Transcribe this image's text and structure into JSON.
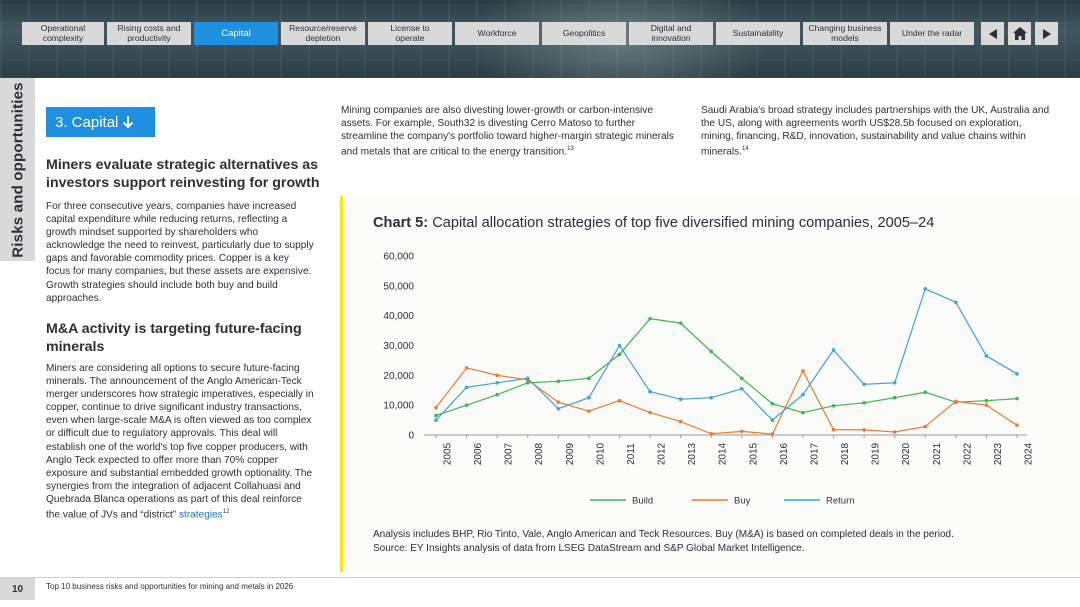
{
  "nav": {
    "tabs": [
      {
        "label": "Operational\ncomplexity",
        "active": false
      },
      {
        "label": "Rising costs and\nproductivity",
        "active": false
      },
      {
        "label": "Capital",
        "active": true
      },
      {
        "label": "Resource/reserve\ndepletion",
        "active": false
      },
      {
        "label": "License to\noperate",
        "active": false
      },
      {
        "label": "Workforce",
        "active": false
      },
      {
        "label": "Geopolitics",
        "active": false
      },
      {
        "label": "Digital and\ninnovation",
        "active": false
      },
      {
        "label": "Sustainability",
        "active": false
      },
      {
        "label": "Changing business\nmodels",
        "active": false
      },
      {
        "label": "Under the radar",
        "active": false
      }
    ],
    "icons": [
      "prev-arrow-icon",
      "home-icon",
      "next-arrow-icon"
    ]
  },
  "side_tab": "Risks and opportunities",
  "section": {
    "badge": "3. Capital",
    "badge_icon": "arrow-down-icon",
    "heading1": "Miners evaluate strategic alternatives as investors support reinvesting for growth",
    "para1": "For three consecutive years, companies have increased capital expenditure while reducing returns, reflecting a growth mindset supported by shareholders who acknowledge the need to reinvest, particularly due to supply gaps and favorable commodity prices. Copper is a key focus for many companies, but these assets are expensive. Growth strategies should include both buy and build approaches.",
    "heading2": "M&A activity is targeting future-facing minerals",
    "para2": "Miners are considering all options to secure future-facing minerals. The announcement of the Anglo American-Teck merger underscores how strategic imperatives, especially in copper, continue to drive significant industry transactions, even when large-scale M&A is often viewed as too complex or difficult due to regulatory approvals. This deal will establish one of the world's top five copper producers, with Anglo Teck expected to offer more than 70% copper exposure and substantial embedded growth optionality. The synergies from the integration of adjacent Collahuasi and Quebrada Blanca operations as part of this deal reinforce the value of JVs and “district”",
    "para2_link": "strategies",
    "para2_sup": "12"
  },
  "col_mid": {
    "text": "Mining companies are also divesting lower-growth or carbon-intensive assets. For example, South32 is divesting Cerro Matoso to further streamline the company's portfolio toward higher-margin strategic minerals and metals that are critical to the energy transition.",
    "sup": "13"
  },
  "col_right": {
    "text": "Saudi Arabia's broad strategy includes partnerships with the UK, Australia and the US, along with agreements worth US$28.5b focused on exploration, mining, financing, R&D, innovation, sustainability and value chains within minerals.",
    "sup": "14"
  },
  "chart": {
    "title_bold": "Chart 5:",
    "title_rest": " Capital allocation strategies of top five diversified mining companies, 2005–24",
    "note1": "Analysis includes BHP, Rio Tinto, Vale, Anglo American and Teck Resources. Buy (M&A) is based on completed deals in the period.",
    "note2": "Source: EY Insights analysis of data from LSEG DataStream and S&P Global Market Intelligence."
  },
  "chart_data": {
    "type": "line",
    "x": [
      "2005",
      "2006",
      "2007",
      "2008",
      "2009",
      "2010",
      "2011",
      "2012",
      "2013",
      "2014",
      "2015",
      "2016",
      "2017",
      "2018",
      "2019",
      "2020",
      "2021",
      "2022",
      "2023",
      "2024"
    ],
    "ylim": [
      0,
      60000
    ],
    "yticks": [
      "0",
      "10,000",
      "20,000",
      "30,000",
      "40,000",
      "50,000",
      "60,000"
    ],
    "ytick_values": [
      0,
      10000,
      20000,
      30000,
      40000,
      50000,
      60000
    ],
    "grid": false,
    "legend": "bottom",
    "series": [
      {
        "name": "Build",
        "color": "#3cb84a",
        "values": [
          6500,
          10000,
          13500,
          17500,
          18000,
          19000,
          27000,
          39000,
          37500,
          28000,
          19000,
          10500,
          7500,
          9800,
          10800,
          12500,
          14300,
          11000,
          11500,
          12200
        ]
      },
      {
        "name": "Buy",
        "color": "#ee7b2b",
        "values": [
          9200,
          22500,
          20000,
          18500,
          11000,
          8000,
          11500,
          7500,
          4500,
          400,
          1200,
          300,
          21500,
          1800,
          1700,
          1000,
          2800,
          11300,
          10000,
          3300
        ]
      },
      {
        "name": "Return",
        "color": "#3aa4de",
        "values": [
          5000,
          16000,
          17500,
          19000,
          8800,
          12500,
          30000,
          14500,
          12000,
          12500,
          15500,
          5000,
          13500,
          28500,
          17000,
          17500,
          49000,
          44500,
          26500,
          20500
        ]
      }
    ]
  },
  "footer": {
    "page": "10",
    "text": "Top 10 business risks and opportunities for mining and metals in 2026"
  }
}
